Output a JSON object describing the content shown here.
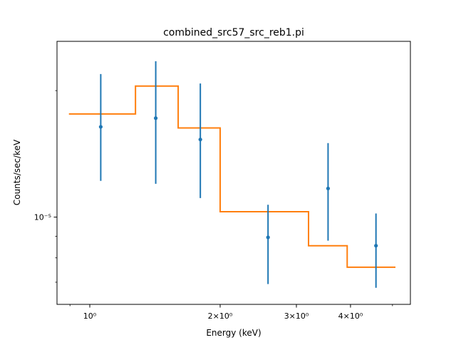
{
  "chart_data": {
    "type": "scatter",
    "title": "combined_src57_src_reb1.pi",
    "xlabel": "Energy (keV)",
    "ylabel": "Counts/sec/keV",
    "x_scale": "log",
    "y_scale": "log",
    "xlim": [
      0.84,
      5.5
    ],
    "ylim": [
      6.2e-06,
      2.62e-05
    ],
    "x_major_ticks": [
      {
        "value": 1,
        "label": "10⁰"
      },
      {
        "value": 2,
        "label": "2×10⁰"
      },
      {
        "value": 3,
        "label": "3×10⁰"
      },
      {
        "value": 4,
        "label": "4×10⁰"
      }
    ],
    "x_minor_ticks": [
      0.9,
      5
    ],
    "y_major_ticks": [
      {
        "value": 1e-05,
        "label": "10⁻⁵"
      }
    ],
    "y_minor_ticks": [
      7e-06,
      8e-06,
      9e-06,
      2e-05
    ],
    "series": [
      {
        "kind": "errorbar",
        "color": "#1f77b4",
        "x": [
          1.06,
          1.42,
          1.8,
          2.58,
          3.55,
          4.58
        ],
        "y": [
          1.64e-05,
          1.72e-05,
          1.53e-05,
          8.95e-06,
          1.17e-05,
          8.55e-06
        ],
        "yerr_low": [
          1.22e-05,
          1.2e-05,
          1.11e-05,
          6.93e-06,
          8.79e-06,
          6.79e-06
        ],
        "yerr_high": [
          2.19e-05,
          2.35e-05,
          2.08e-05,
          1.07e-05,
          1.5e-05,
          1.02e-05
        ]
      },
      {
        "kind": "step",
        "color": "#ff7f0e",
        "edges": [
          0.895,
          1.275,
          1.6,
          2.0,
          3.2,
          3.93,
          5.08
        ],
        "values": [
          1.76e-05,
          2.05e-05,
          1.63e-05,
          1.03e-05,
          8.55e-06,
          7.6e-06
        ]
      }
    ]
  }
}
